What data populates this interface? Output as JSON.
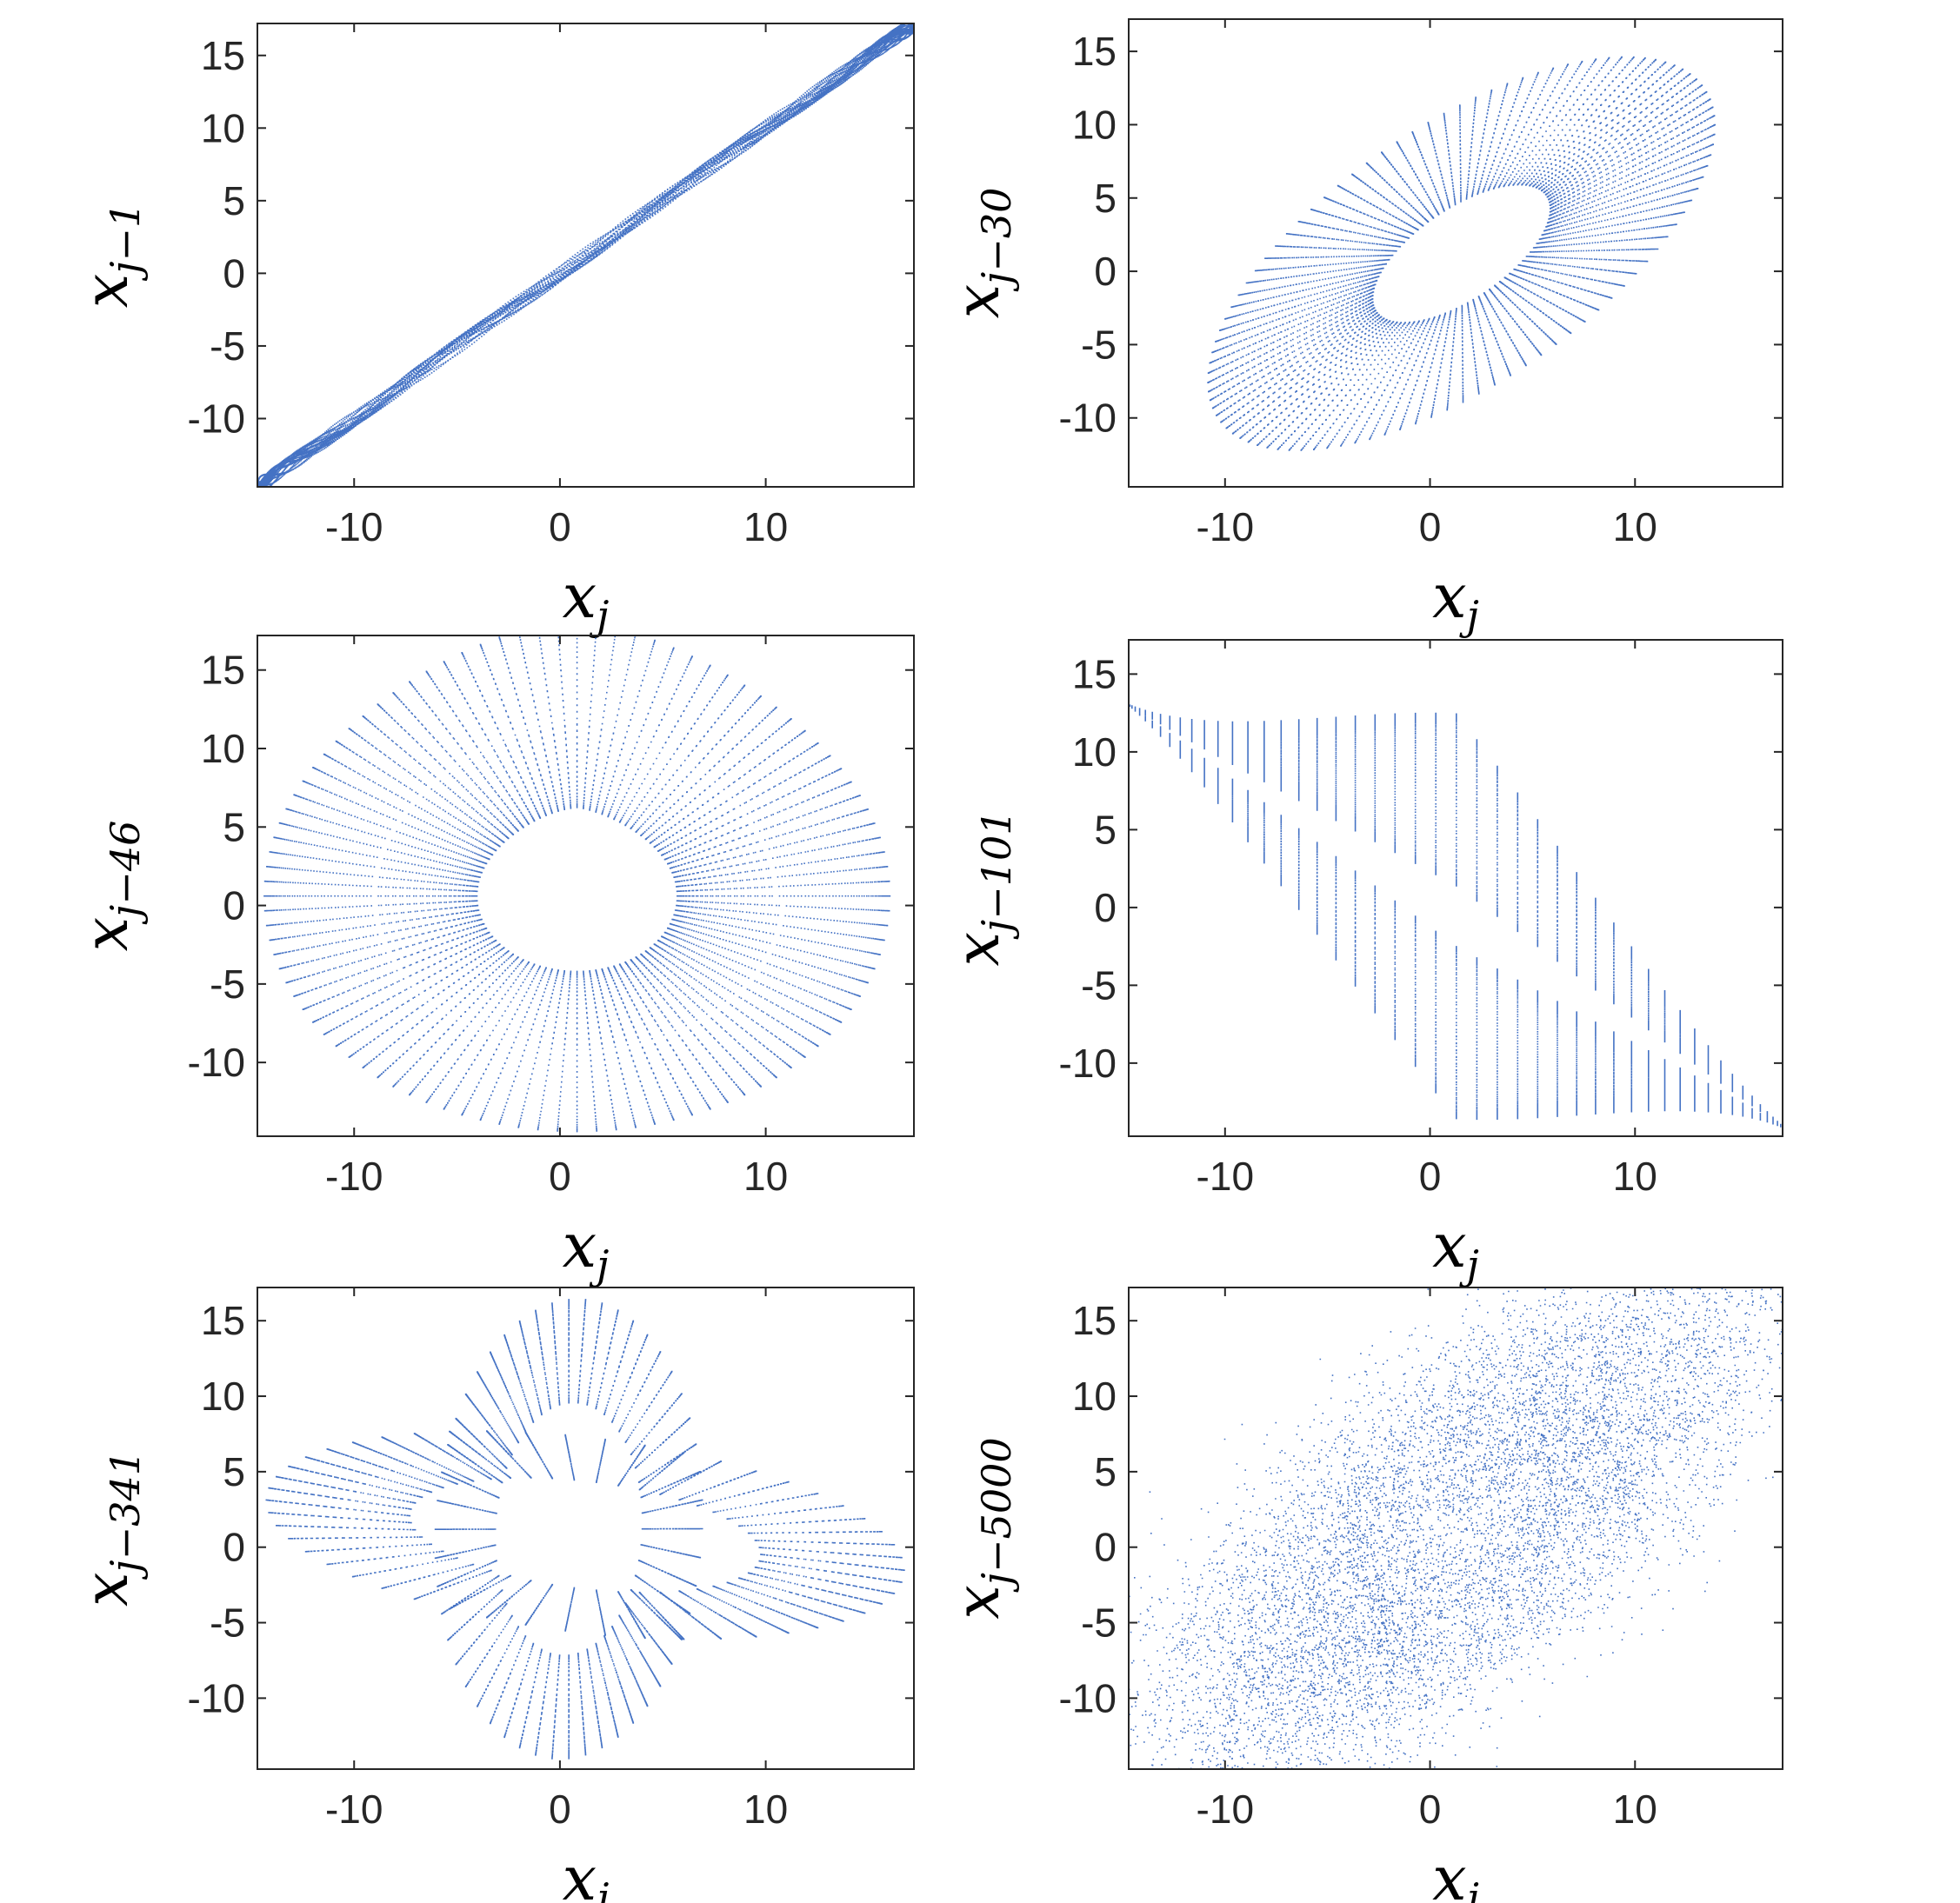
{
  "figure": {
    "background": "#ffffff",
    "series_color": "#4472c4",
    "axis_color": "#262626"
  },
  "chart_data": [
    {
      "type": "scatter",
      "xlabel": {
        "base": "x",
        "sub": "j"
      },
      "ylabel": {
        "base": "x",
        "sub": "j−1"
      },
      "xlim": [
        -14.7,
        17.2
      ],
      "ylim": [
        -14.7,
        17.2
      ],
      "xticks": [
        -10,
        0,
        10
      ],
      "xtick_labels": [
        "-10",
        "0",
        "10"
      ],
      "yticks": [
        -10,
        -5,
        0,
        5,
        10,
        15
      ],
      "ytick_labels": [
        "-10",
        "-5",
        "0",
        "5",
        "10",
        "15"
      ],
      "lag": 1,
      "shape": "diagonal"
    },
    {
      "type": "scatter",
      "xlabel": {
        "base": "x",
        "sub": "j"
      },
      "ylabel": {
        "base": "x",
        "sub": "j−30"
      },
      "xlim": [
        -14.7,
        17.2
      ],
      "ylim": [
        -14.7,
        17.2
      ],
      "xticks": [
        -10,
        0,
        10
      ],
      "xtick_labels": [
        "-10",
        "0",
        "10"
      ],
      "yticks": [
        -10,
        -5,
        0,
        5,
        10,
        15
      ],
      "ytick_labels": [
        "-10",
        "-5",
        "0",
        "5",
        "10",
        "15"
      ],
      "lag": 30,
      "shape": "tilted-loop"
    },
    {
      "type": "scatter",
      "xlabel": {
        "base": "x",
        "sub": "j"
      },
      "ylabel": {
        "base": "x",
        "sub": "j−46"
      },
      "xlim": [
        -14.7,
        17.2
      ],
      "ylim": [
        -14.7,
        17.2
      ],
      "xticks": [
        -10,
        0,
        10
      ],
      "xtick_labels": [
        "-10",
        "0",
        "10"
      ],
      "yticks": [
        -10,
        -5,
        0,
        5,
        10,
        15
      ],
      "ytick_labels": [
        "-10",
        "-5",
        "0",
        "5",
        "10",
        "15"
      ],
      "lag": 46,
      "shape": "ring"
    },
    {
      "type": "scatter",
      "xlabel": {
        "base": "x",
        "sub": "j"
      },
      "ylabel": {
        "base": "x",
        "sub": "j−101"
      },
      "xlim": [
        -14.7,
        17.2
      ],
      "ylim": [
        -14.7,
        17.2
      ],
      "xticks": [
        -10,
        0,
        10
      ],
      "xtick_labels": [
        "-10",
        "0",
        "10"
      ],
      "yticks": [
        -10,
        -5,
        0,
        5,
        10,
        15
      ],
      "ytick_labels": [
        "-10",
        "-5",
        "0",
        "5",
        "10",
        "15"
      ],
      "lag": 101,
      "shape": "anti-diagonal-twist"
    },
    {
      "type": "scatter",
      "xlabel": {
        "base": "x",
        "sub": "j"
      },
      "ylabel": {
        "base": "x",
        "sub": "j−341"
      },
      "xlim": [
        -14.7,
        17.2
      ],
      "ylim": [
        -14.7,
        17.2
      ],
      "xticks": [
        -10,
        0,
        10
      ],
      "xtick_labels": [
        "-10",
        "0",
        "10"
      ],
      "yticks": [
        -10,
        -5,
        0,
        5,
        10,
        15
      ],
      "ytick_labels": [
        "-10",
        "-5",
        "0",
        "5",
        "10",
        "15"
      ],
      "lag": 341,
      "shape": "crossed-ellipses"
    },
    {
      "type": "scatter",
      "xlabel": {
        "base": "x",
        "sub": "j"
      },
      "ylabel": {
        "base": "x",
        "sub": "j−5000"
      },
      "xlim": [
        -14.7,
        17.2
      ],
      "ylim": [
        -14.7,
        17.2
      ],
      "xticks": [
        -10,
        0,
        10
      ],
      "xtick_labels": [
        "-10",
        "0",
        "10"
      ],
      "yticks": [
        -10,
        -5,
        0,
        5,
        10,
        15
      ],
      "ytick_labels": [
        "-10",
        "-5",
        "0",
        "5",
        "10",
        "15"
      ],
      "lag": 5000,
      "shape": "diffuse-cloud"
    }
  ]
}
